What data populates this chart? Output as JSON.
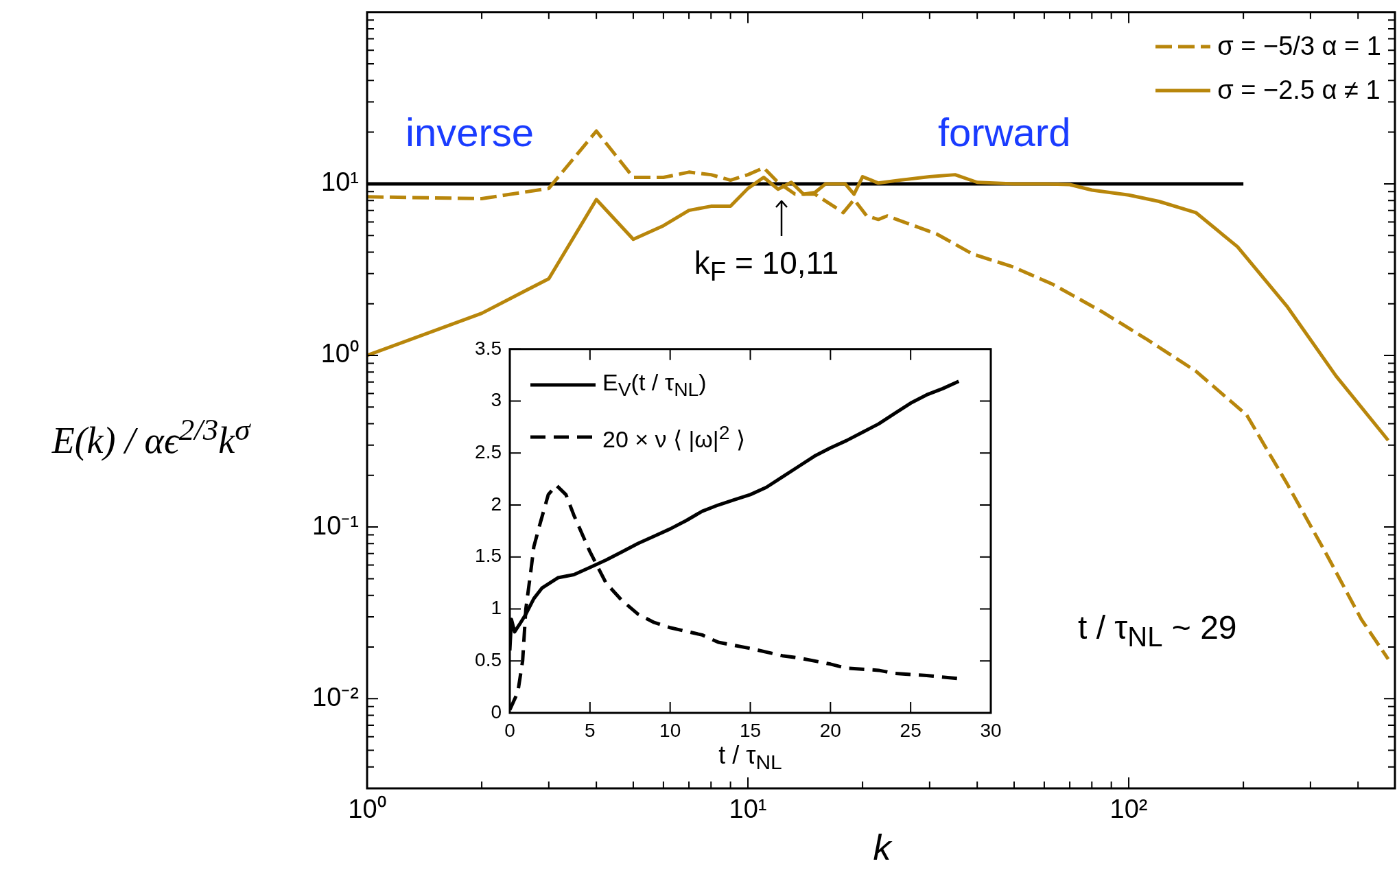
{
  "chart_data": [
    {
      "type": "line",
      "xlabel": "k",
      "ylabel": "E(k) / αϵ$^{2/3}$k$^{σ}$",
      "log": "xy",
      "grid": false,
      "legend": "top right",
      "marker": "none",
      "xlim": [
        1,
        500
      ],
      "ylim": [
        0.003,
        100
      ],
      "xticks": [
        {
          "value": 1,
          "label": "10⁰"
        },
        {
          "value": 2,
          "label": null
        },
        {
          "value": 3,
          "label": null
        },
        {
          "value": 4,
          "label": null
        },
        {
          "value": 5,
          "label": null
        },
        {
          "value": 6,
          "label": null
        },
        {
          "value": 7,
          "label": null
        },
        {
          "value": 8,
          "label": null
        },
        {
          "value": 9,
          "label": null
        },
        {
          "value": 10,
          "label": "10¹"
        },
        {
          "value": 20,
          "label": null
        },
        {
          "value": 30,
          "label": null
        },
        {
          "value": 40,
          "label": null
        },
        {
          "value": 50,
          "label": null
        },
        {
          "value": 60,
          "label": null
        },
        {
          "value": 70,
          "label": null
        },
        {
          "value": 80,
          "label": null
        },
        {
          "value": 90,
          "label": null
        },
        {
          "value": 100,
          "label": "10²"
        },
        {
          "value": 200,
          "label": null
        },
        {
          "value": 300,
          "label": null
        },
        {
          "value": 400,
          "label": null
        }
      ],
      "yticks": [
        {
          "value": 0.004,
          "label": null
        },
        {
          "value": 0.005,
          "label": null
        },
        {
          "value": 0.006,
          "label": null
        },
        {
          "value": 0.007,
          "label": null
        },
        {
          "value": 0.008,
          "label": null
        },
        {
          "value": 0.009,
          "label": null
        },
        {
          "value": 0.01,
          "label": "10⁻²"
        },
        {
          "value": 0.02,
          "label": null
        },
        {
          "value": 0.03,
          "label": null
        },
        {
          "value": 0.04,
          "label": null
        },
        {
          "value": 0.05,
          "label": null
        },
        {
          "value": 0.06,
          "label": null
        },
        {
          "value": 0.07,
          "label": null
        },
        {
          "value": 0.08,
          "label": null
        },
        {
          "value": 0.09,
          "label": null
        },
        {
          "value": 0.1,
          "label": "10⁻¹"
        },
        {
          "value": 0.2,
          "label": null
        },
        {
          "value": 0.3,
          "label": null
        },
        {
          "value": 0.4,
          "label": null
        },
        {
          "value": 0.5,
          "label": null
        },
        {
          "value": 0.6,
          "label": null
        },
        {
          "value": 0.7,
          "label": null
        },
        {
          "value": 0.8,
          "label": null
        },
        {
          "value": 0.9,
          "label": null
        },
        {
          "value": 1,
          "label": "10⁰"
        },
        {
          "value": 2,
          "label": null
        },
        {
          "value": 3,
          "label": null
        },
        {
          "value": 4,
          "label": null
        },
        {
          "value": 5,
          "label": null
        },
        {
          "value": 6,
          "label": null
        },
        {
          "value": 7,
          "label": null
        },
        {
          "value": 8,
          "label": null
        },
        {
          "value": 9,
          "label": null
        },
        {
          "value": 10,
          "label": "10¹"
        },
        {
          "value": 20,
          "label": null
        },
        {
          "value": 30,
          "label": null
        },
        {
          "value": 40,
          "label": null
        },
        {
          "value": 50,
          "label": null
        },
        {
          "value": 60,
          "label": null
        },
        {
          "value": 70,
          "label": null
        },
        {
          "value": 80,
          "label": null
        },
        {
          "value": 90,
          "label": null
        }
      ],
      "series": [
        {
          "name": "σ = −5/3  α = 1",
          "color": "#b8860b",
          "line_style": "dashed",
          "x": [
            1,
            2,
            3,
            4,
            5,
            6,
            7,
            8,
            9,
            10,
            11,
            12,
            13.3,
            15,
            17.8,
            19,
            20.5,
            22,
            23.2,
            31.3,
            38.9,
            49.3,
            63.1,
            85,
            111,
            150,
            204,
            260,
            331,
            408,
            480
          ],
          "values": [
            8.4,
            8.2,
            9.4,
            20.3,
            10.9,
            10.9,
            11.7,
            11.3,
            10.5,
            11.3,
            12.4,
            10.2,
            8.7,
            8.7,
            6.8,
            8.1,
            6.5,
            6.2,
            6.5,
            5.1,
            3.9,
            3.3,
            2.6,
            1.8,
            1.25,
            0.81,
            0.45,
            0.18,
            0.069,
            0.029,
            0.017
          ]
        },
        {
          "name": "σ = −2.5  α ≠ 1",
          "color": "#b8860b",
          "line_style": "solid",
          "x": [
            1,
            2,
            3,
            4,
            5,
            6,
            7,
            8,
            9,
            10,
            11,
            12,
            13,
            14,
            15,
            16,
            18,
            19,
            20,
            22,
            25,
            30,
            35,
            40,
            50,
            60,
            70,
            80,
            100,
            120,
            150,
            193,
            260,
            350,
            480
          ],
          "values": [
            1.0,
            1.76,
            2.8,
            8.1,
            4.75,
            5.7,
            7.0,
            7.4,
            7.4,
            9.4,
            10.9,
            9.3,
            10.2,
            8.7,
            8.9,
            10,
            10,
            8.7,
            11,
            10.1,
            10.5,
            11,
            11.3,
            10.2,
            10,
            10,
            9.9,
            9.2,
            8.6,
            7.9,
            6.8,
            4.3,
            1.94,
            0.76,
            0.32
          ]
        },
        {
          "color": "#000000",
          "line_style": "solid",
          "x": [
            1,
            200
          ],
          "values": [
            10,
            10
          ]
        }
      ],
      "annotations": [
        "inverse",
        "forward",
        "k$_{F}$ = 10,11",
        "t / τ$_{NL}$ ~ 29"
      ]
    },
    {
      "type": "line",
      "xlabel": "t / τ$_{NL}$",
      "grid": false,
      "legend": "top left",
      "marker": "none",
      "xlim": [
        0,
        30
      ],
      "ylim": [
        0,
        3.5
      ],
      "xticks": [
        0,
        5,
        10,
        15,
        20,
        25,
        30
      ],
      "yticks": [
        0,
        0.5,
        1,
        1.5,
        2,
        2.5,
        3,
        3.5
      ],
      "series": [
        {
          "name": "E$_{V}$(t / τ$_{NL}$)",
          "color": "#000000",
          "line_style": "solid",
          "x": [
            0,
            0.1,
            0.3,
            0.6,
            1,
            1.5,
            2,
            3,
            4,
            5,
            6,
            7,
            8,
            9,
            10,
            11,
            12,
            13,
            14,
            15,
            16,
            17,
            18,
            19,
            20,
            21,
            22,
            23,
            24,
            25,
            26,
            27,
            28
          ],
          "values": [
            0.6,
            0.9,
            0.78,
            0.85,
            0.95,
            1.1,
            1.2,
            1.3,
            1.33,
            1.4,
            1.47,
            1.55,
            1.63,
            1.7,
            1.77,
            1.85,
            1.94,
            2.0,
            2.05,
            2.1,
            2.17,
            2.27,
            2.37,
            2.47,
            2.55,
            2.62,
            2.7,
            2.78,
            2.88,
            2.98,
            3.06,
            3.12,
            3.19
          ]
        },
        {
          "name": "20 × ν ⟨ |ω|$^{2}$ ⟩",
          "color": "#000000",
          "line_style": "dashed",
          "x": [
            0,
            0.5,
            0.8,
            1,
            1.3,
            1.5,
            1.85,
            2.4,
            2.9,
            3.5,
            4,
            5,
            6,
            7,
            8,
            9,
            10,
            12,
            13,
            15,
            17,
            18,
            20,
            21,
            23,
            24,
            26,
            28
          ],
          "values": [
            0.03,
            0.2,
            0.5,
            1.0,
            1.35,
            1.6,
            1.8,
            2.1,
            2.19,
            2.1,
            1.9,
            1.55,
            1.25,
            1.08,
            0.95,
            0.87,
            0.82,
            0.75,
            0.68,
            0.62,
            0.55,
            0.53,
            0.47,
            0.43,
            0.41,
            0.38,
            0.36,
            0.33
          ]
        }
      ]
    }
  ]
}
